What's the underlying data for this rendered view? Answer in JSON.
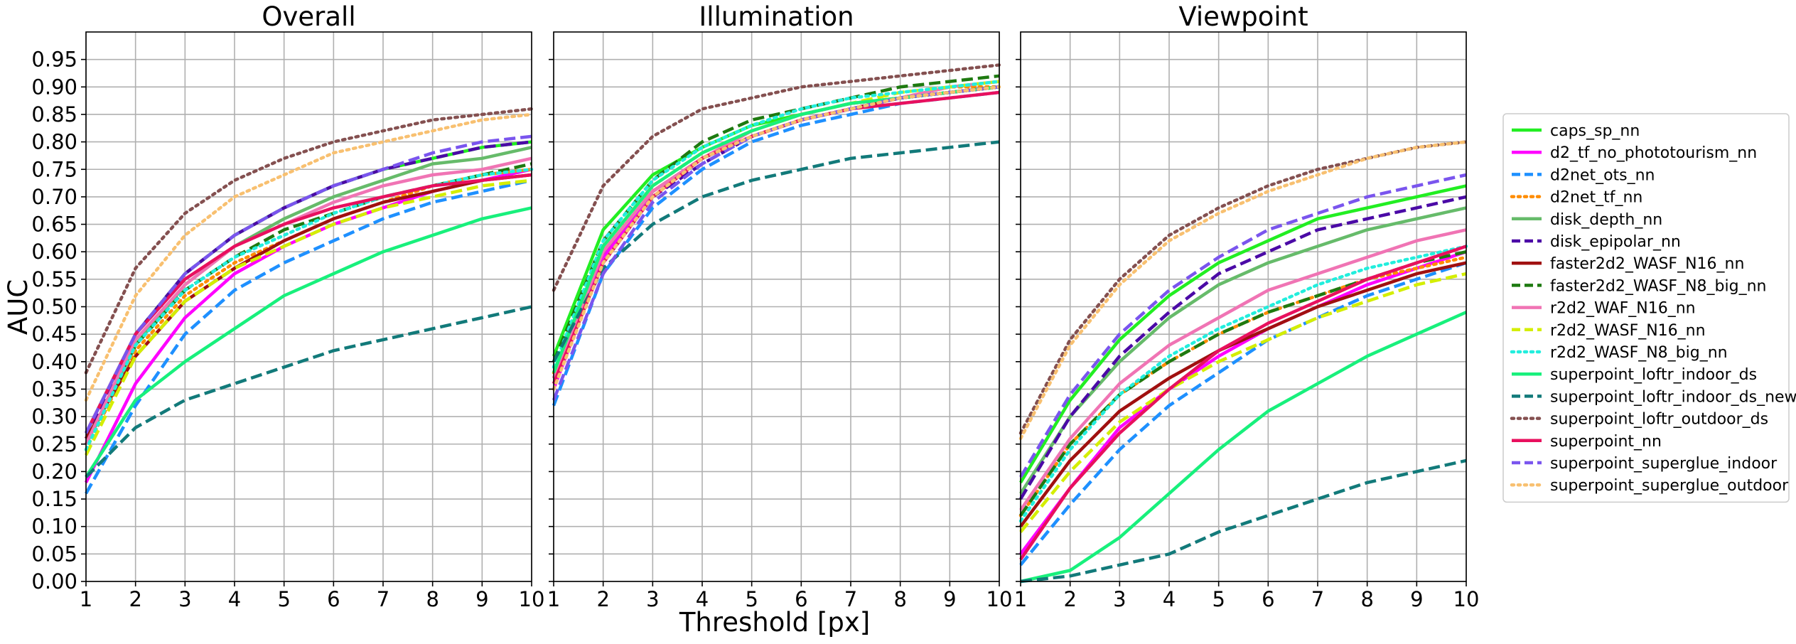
{
  "chart_data": {
    "type": "line",
    "ylabel": "AUC",
    "xlabel": "Threshold [px]",
    "xlim": [
      1,
      10
    ],
    "ylim": [
      0,
      1.0
    ],
    "x": [
      1,
      2,
      3,
      4,
      5,
      6,
      7,
      8,
      9,
      10
    ],
    "xticks": [
      "1",
      "2",
      "3",
      "4",
      "5",
      "6",
      "7",
      "8",
      "9",
      "10"
    ],
    "yticks": [
      "0.00",
      "0.05",
      "0.10",
      "0.15",
      "0.20",
      "0.25",
      "0.30",
      "0.35",
      "0.40",
      "0.45",
      "0.50",
      "0.55",
      "0.60",
      "0.65",
      "0.70",
      "0.75",
      "0.80",
      "0.85",
      "0.90",
      "0.95"
    ],
    "grid": true,
    "shared_y": true,
    "legend_position": "right",
    "series_styles": [
      {
        "name": "caps_sp_nn",
        "color": "#22ee22",
        "dash": "solid"
      },
      {
        "name": "d2_tf_no_phototourism_nn",
        "color": "#ff00ff",
        "dash": "solid"
      },
      {
        "name": "d2net_ots_nn",
        "color": "#1e90ff",
        "dash": "dashed"
      },
      {
        "name": "d2net_tf_nn",
        "color": "#ff8c00",
        "dash": "dotted"
      },
      {
        "name": "disk_depth_nn",
        "color": "#66bb6a",
        "dash": "solid"
      },
      {
        "name": "disk_epipolar_nn",
        "color": "#4b0aa6",
        "dash": "dashed"
      },
      {
        "name": "faster2d2_WASF_N16_nn",
        "color": "#a01010",
        "dash": "solid"
      },
      {
        "name": "faster2d2_WASF_N8_big_nn",
        "color": "#1e7a10",
        "dash": "dashed"
      },
      {
        "name": "r2d2_WAF_N16_nn",
        "color": "#f074b4",
        "dash": "solid"
      },
      {
        "name": "r2d2_WASF_N16_nn",
        "color": "#d4ee00",
        "dash": "dashed"
      },
      {
        "name": "r2d2_WASF_N8_big_nn",
        "color": "#22eedd",
        "dash": "dotted"
      },
      {
        "name": "superpoint_loftr_indoor_ds",
        "color": "#18f07c",
        "dash": "solid"
      },
      {
        "name": "superpoint_loftr_indoor_ds_new",
        "color": "#127a7a",
        "dash": "dashed"
      },
      {
        "name": "superpoint_loftr_outdoor_ds",
        "color": "#845050",
        "dash": "dotted"
      },
      {
        "name": "superpoint_nn",
        "color": "#e8105e",
        "dash": "solid"
      },
      {
        "name": "superpoint_superglue_indoor",
        "color": "#7a55ee",
        "dash": "dashed"
      },
      {
        "name": "superpoint_superglue_outdoor",
        "color": "#f8c070",
        "dash": "dotted"
      }
    ],
    "panels": [
      {
        "title": "Overall",
        "series": [
          {
            "name": "caps_sp_nn",
            "values": [
              0.27,
              0.45,
              0.56,
              0.63,
              0.68,
              0.72,
              0.75,
              0.77,
              0.79,
              0.8
            ]
          },
          {
            "name": "d2_tf_no_phototourism_nn",
            "values": [
              0.18,
              0.36,
              0.48,
              0.56,
              0.61,
              0.65,
              0.68,
              0.71,
              0.73,
              0.75
            ]
          },
          {
            "name": "d2net_ots_nn",
            "values": [
              0.16,
              0.32,
              0.45,
              0.53,
              0.58,
              0.62,
              0.66,
              0.69,
              0.71,
              0.73
            ]
          },
          {
            "name": "d2net_tf_nn",
            "values": [
              0.24,
              0.42,
              0.52,
              0.58,
              0.62,
              0.66,
              0.69,
              0.72,
              0.74,
              0.75
            ]
          },
          {
            "name": "disk_depth_nn",
            "values": [
              0.25,
              0.43,
              0.54,
              0.61,
              0.66,
              0.7,
              0.73,
              0.76,
              0.77,
              0.79
            ]
          },
          {
            "name": "disk_epipolar_nn",
            "values": [
              0.26,
              0.45,
              0.56,
              0.63,
              0.68,
              0.72,
              0.75,
              0.77,
              0.79,
              0.8
            ]
          },
          {
            "name": "faster2d2_WASF_N16_nn",
            "values": [
              0.26,
              0.41,
              0.51,
              0.57,
              0.62,
              0.66,
              0.69,
              0.71,
              0.73,
              0.74
            ]
          },
          {
            "name": "faster2d2_WASF_N8_big_nn",
            "values": [
              0.25,
              0.43,
              0.53,
              0.59,
              0.64,
              0.67,
              0.7,
              0.72,
              0.74,
              0.76
            ]
          },
          {
            "name": "r2d2_WAF_N16_nn",
            "values": [
              0.25,
              0.44,
              0.54,
              0.61,
              0.65,
              0.69,
              0.72,
              0.74,
              0.75,
              0.77
            ]
          },
          {
            "name": "r2d2_WASF_N16_nn",
            "values": [
              0.23,
              0.41,
              0.51,
              0.57,
              0.61,
              0.65,
              0.68,
              0.7,
              0.72,
              0.73
            ]
          },
          {
            "name": "r2d2_WASF_N8_big_nn",
            "values": [
              0.24,
              0.43,
              0.53,
              0.59,
              0.63,
              0.67,
              0.7,
              0.72,
              0.74,
              0.75
            ]
          },
          {
            "name": "superpoint_loftr_indoor_ds",
            "values": [
              0.19,
              0.33,
              0.4,
              0.46,
              0.52,
              0.56,
              0.6,
              0.63,
              0.66,
              0.68
            ]
          },
          {
            "name": "superpoint_loftr_indoor_ds_new",
            "values": [
              0.19,
              0.28,
              0.33,
              0.36,
              0.39,
              0.42,
              0.44,
              0.46,
              0.48,
              0.5
            ]
          },
          {
            "name": "superpoint_loftr_outdoor_ds",
            "values": [
              0.38,
              0.57,
              0.67,
              0.73,
              0.77,
              0.8,
              0.82,
              0.84,
              0.85,
              0.86
            ]
          },
          {
            "name": "superpoint_nn",
            "values": [
              0.27,
              0.45,
              0.55,
              0.61,
              0.65,
              0.68,
              0.7,
              0.72,
              0.73,
              0.74
            ]
          },
          {
            "name": "superpoint_superglue_indoor",
            "values": [
              0.27,
              0.45,
              0.56,
              0.63,
              0.68,
              0.72,
              0.75,
              0.78,
              0.8,
              0.81
            ]
          },
          {
            "name": "superpoint_superglue_outdoor",
            "values": [
              0.33,
              0.52,
              0.63,
              0.7,
              0.74,
              0.78,
              0.8,
              0.82,
              0.84,
              0.85
            ]
          }
        ]
      },
      {
        "title": "Illumination",
        "series": [
          {
            "name": "caps_sp_nn",
            "values": [
              0.41,
              0.64,
              0.74,
              0.79,
              0.83,
              0.85,
              0.87,
              0.88,
              0.89,
              0.9
            ]
          },
          {
            "name": "d2_tf_no_phototourism_nn",
            "values": [
              0.35,
              0.59,
              0.71,
              0.77,
              0.81,
              0.84,
              0.86,
              0.88,
              0.89,
              0.9
            ]
          },
          {
            "name": "d2net_ots_nn",
            "values": [
              0.32,
              0.56,
              0.68,
              0.75,
              0.8,
              0.83,
              0.85,
              0.87,
              0.88,
              0.89
            ]
          },
          {
            "name": "d2net_tf_nn",
            "values": [
              0.38,
              0.61,
              0.72,
              0.78,
              0.82,
              0.85,
              0.87,
              0.88,
              0.9,
              0.9
            ]
          },
          {
            "name": "disk_depth_nn",
            "values": [
              0.38,
              0.6,
              0.71,
              0.77,
              0.81,
              0.84,
              0.86,
              0.88,
              0.89,
              0.9
            ]
          },
          {
            "name": "disk_epipolar_nn",
            "values": [
              0.36,
              0.58,
              0.7,
              0.76,
              0.81,
              0.84,
              0.86,
              0.88,
              0.89,
              0.9
            ]
          },
          {
            "name": "faster2d2_WASF_N16_nn",
            "values": [
              0.37,
              0.6,
              0.71,
              0.77,
              0.81,
              0.84,
              0.86,
              0.88,
              0.89,
              0.9
            ]
          },
          {
            "name": "faster2d2_WASF_N8_big_nn",
            "values": [
              0.4,
              0.62,
              0.73,
              0.8,
              0.84,
              0.86,
              0.88,
              0.9,
              0.91,
              0.92
            ]
          },
          {
            "name": "r2d2_WAF_N16_nn",
            "values": [
              0.37,
              0.6,
              0.71,
              0.77,
              0.82,
              0.85,
              0.87,
              0.88,
              0.9,
              0.91
            ]
          },
          {
            "name": "r2d2_WASF_N16_nn",
            "values": [
              0.38,
              0.61,
              0.72,
              0.78,
              0.82,
              0.85,
              0.87,
              0.89,
              0.9,
              0.91
            ]
          },
          {
            "name": "r2d2_WASF_N8_big_nn",
            "values": [
              0.39,
              0.62,
              0.73,
              0.79,
              0.83,
              0.86,
              0.88,
              0.89,
              0.9,
              0.91
            ]
          },
          {
            "name": "superpoint_loftr_indoor_ds",
            "values": [
              0.38,
              0.61,
              0.72,
              0.78,
              0.82,
              0.85,
              0.87,
              0.88,
              0.89,
              0.9
            ]
          },
          {
            "name": "superpoint_loftr_indoor_ds_new",
            "values": [
              0.4,
              0.57,
              0.65,
              0.7,
              0.73,
              0.75,
              0.77,
              0.78,
              0.79,
              0.8
            ]
          },
          {
            "name": "superpoint_loftr_outdoor_ds",
            "values": [
              0.53,
              0.72,
              0.81,
              0.86,
              0.88,
              0.9,
              0.91,
              0.92,
              0.93,
              0.94
            ]
          },
          {
            "name": "superpoint_nn",
            "values": [
              0.36,
              0.58,
              0.7,
              0.77,
              0.81,
              0.84,
              0.86,
              0.87,
              0.88,
              0.89
            ]
          },
          {
            "name": "superpoint_superglue_indoor",
            "values": [
              0.33,
              0.56,
              0.69,
              0.76,
              0.81,
              0.84,
              0.86,
              0.88,
              0.89,
              0.9
            ]
          },
          {
            "name": "superpoint_superglue_outdoor",
            "values": [
              0.35,
              0.58,
              0.7,
              0.77,
              0.81,
              0.84,
              0.86,
              0.88,
              0.89,
              0.9
            ]
          }
        ]
      },
      {
        "title": "Viewpoint",
        "series": [
          {
            "name": "caps_sp_nn",
            "values": [
              0.18,
              0.33,
              0.44,
              0.52,
              0.58,
              0.62,
              0.66,
              0.68,
              0.7,
              0.72
            ]
          },
          {
            "name": "d2_tf_no_phototourism_nn",
            "values": [
              0.05,
              0.17,
              0.28,
              0.35,
              0.41,
              0.46,
              0.5,
              0.54,
              0.57,
              0.6
            ]
          },
          {
            "name": "d2net_ots_nn",
            "values": [
              0.03,
              0.14,
              0.24,
              0.32,
              0.38,
              0.44,
              0.48,
              0.52,
              0.55,
              0.58
            ]
          },
          {
            "name": "d2net_tf_nn",
            "values": [
              0.12,
              0.25,
              0.34,
              0.4,
              0.45,
              0.49,
              0.52,
              0.55,
              0.57,
              0.59
            ]
          },
          {
            "name": "disk_depth_nn",
            "values": [
              0.16,
              0.3,
              0.4,
              0.48,
              0.54,
              0.58,
              0.61,
              0.64,
              0.66,
              0.68
            ]
          },
          {
            "name": "disk_epipolar_nn",
            "values": [
              0.15,
              0.3,
              0.41,
              0.49,
              0.56,
              0.6,
              0.64,
              0.66,
              0.68,
              0.7
            ]
          },
          {
            "name": "faster2d2_WASF_N16_nn",
            "values": [
              0.1,
              0.22,
              0.31,
              0.37,
              0.42,
              0.46,
              0.5,
              0.53,
              0.56,
              0.58
            ]
          },
          {
            "name": "faster2d2_WASF_N8_big_nn",
            "values": [
              0.12,
              0.25,
              0.34,
              0.4,
              0.45,
              0.49,
              0.52,
              0.55,
              0.58,
              0.6
            ]
          },
          {
            "name": "r2d2_WAF_N16_nn",
            "values": [
              0.13,
              0.26,
              0.36,
              0.43,
              0.48,
              0.53,
              0.56,
              0.59,
              0.62,
              0.64
            ]
          },
          {
            "name": "r2d2_WASF_N16_nn",
            "values": [
              0.09,
              0.2,
              0.29,
              0.35,
              0.4,
              0.44,
              0.48,
              0.51,
              0.54,
              0.56
            ]
          },
          {
            "name": "r2d2_WASF_N8_big_nn",
            "values": [
              0.11,
              0.24,
              0.34,
              0.41,
              0.46,
              0.5,
              0.54,
              0.57,
              0.59,
              0.61
            ]
          },
          {
            "name": "superpoint_loftr_indoor_ds",
            "values": [
              0.0,
              0.02,
              0.08,
              0.16,
              0.24,
              0.31,
              0.36,
              0.41,
              0.45,
              0.49
            ]
          },
          {
            "name": "superpoint_loftr_indoor_ds_new",
            "values": [
              0.0,
              0.01,
              0.03,
              0.05,
              0.09,
              0.12,
              0.15,
              0.18,
              0.2,
              0.22
            ]
          },
          {
            "name": "superpoint_loftr_outdoor_ds",
            "values": [
              0.27,
              0.44,
              0.55,
              0.63,
              0.68,
              0.72,
              0.75,
              0.77,
              0.79,
              0.8
            ]
          },
          {
            "name": "superpoint_nn",
            "values": [
              0.04,
              0.17,
              0.27,
              0.35,
              0.42,
              0.47,
              0.51,
              0.55,
              0.58,
              0.61
            ]
          },
          {
            "name": "superpoint_superglue_indoor",
            "values": [
              0.19,
              0.34,
              0.45,
              0.53,
              0.59,
              0.64,
              0.67,
              0.7,
              0.72,
              0.74
            ]
          },
          {
            "name": "superpoint_superglue_outdoor",
            "values": [
              0.26,
              0.43,
              0.54,
              0.62,
              0.67,
              0.71,
              0.74,
              0.77,
              0.79,
              0.8
            ]
          }
        ]
      }
    ]
  }
}
